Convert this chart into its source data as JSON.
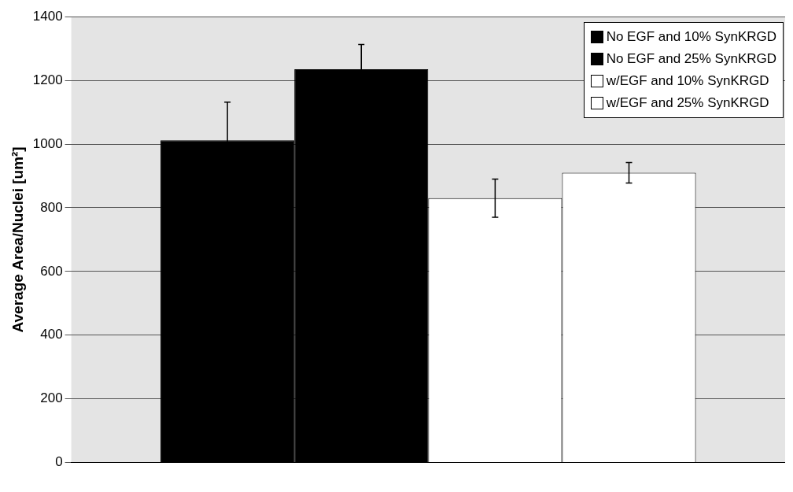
{
  "chart_data": {
    "type": "bar",
    "ylabel": "Average Area/Nuclei [um²]",
    "categories": [
      null
    ],
    "series": [
      {
        "name": "No EGF and 10% SynKRGD",
        "color": "#000000",
        "values": [
          1012
        ],
        "errors": [
          120
        ]
      },
      {
        "name": "No EGF and 25% SynKRGD",
        "color": "#000000",
        "values": [
          1235
        ],
        "errors": [
          78
        ]
      },
      {
        "name": "w/EGF and 10% SynKRGD",
        "color": "#ffffff",
        "values": [
          830
        ],
        "errors": [
          60
        ]
      },
      {
        "name": "w/EGF and 25% SynKRGD",
        "color": "#ffffff",
        "values": [
          910
        ],
        "errors": [
          32
        ]
      }
    ],
    "ylim": [
      0,
      1400
    ],
    "yticks": [
      0,
      200,
      400,
      600,
      800,
      1000,
      1200,
      1400
    ],
    "grid": "y",
    "legend": "top right"
  }
}
